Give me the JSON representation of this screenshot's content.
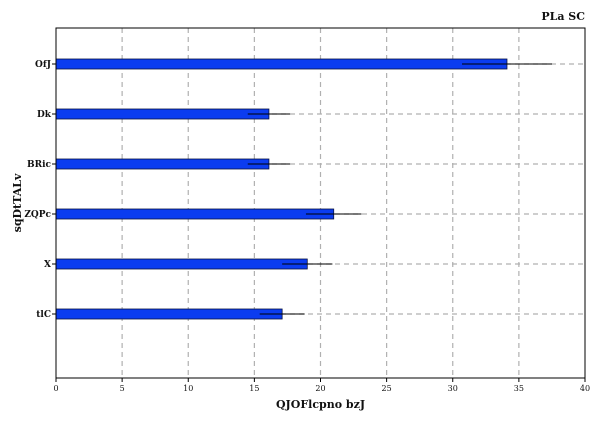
{
  "chart_data": {
    "type": "bar",
    "orientation": "horizontal",
    "title": "PLa SC",
    "xlabel": "QJOFlcpno bzJ",
    "ylabel": "sqDtTALv",
    "categories": [
      "OfJ",
      "Dk",
      "BRic",
      "ZQPc",
      "X",
      "tlC"
    ],
    "values": [
      34.1,
      16.1,
      16.1,
      21.0,
      19.0,
      17.1
    ],
    "errors": [
      3.4,
      1.6,
      1.6,
      2.1,
      1.9,
      1.7
    ],
    "xlim": [
      0,
      40
    ],
    "xticks": [
      0,
      5,
      10,
      15,
      20,
      25,
      30,
      35,
      40
    ],
    "grid": true,
    "bar_color": "#0b3cf0",
    "title_position": "top-right"
  }
}
